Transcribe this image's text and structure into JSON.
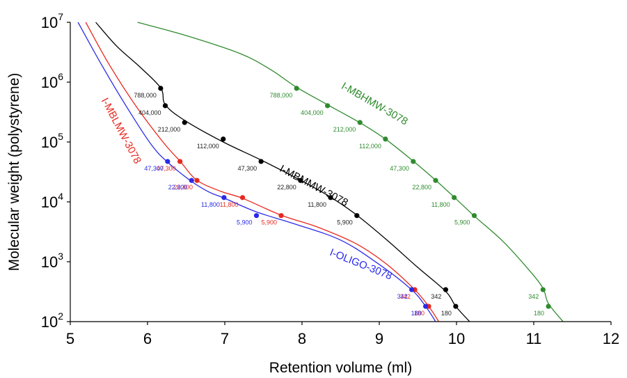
{
  "chart_data": {
    "type": "scatter",
    "xlabel": "Retention volume (ml)",
    "ylabel": "Molecular weight (polystyrene)",
    "xlim": [
      5,
      12
    ],
    "ylim": [
      100,
      10000000
    ],
    "y_scale": "log",
    "grid": false,
    "x_ticks": [
      "5",
      "6",
      "7",
      "8",
      "9",
      "10",
      "11",
      "12"
    ],
    "y_ticks": [
      {
        "value": 100,
        "base": "10",
        "exp": "2"
      },
      {
        "value": 1000,
        "base": "10",
        "exp": "3"
      },
      {
        "value": 10000,
        "base": "10",
        "exp": "4"
      },
      {
        "value": 100000,
        "base": "10",
        "exp": "5"
      },
      {
        "value": 1000000,
        "base": "10",
        "exp": "6"
      },
      {
        "value": 10000000,
        "base": "10",
        "exp": "7"
      }
    ],
    "series": [
      {
        "name": "I-MBHMW-3078",
        "color": "#2e8b2e",
        "label_pos": {
          "x": 8.5,
          "y": 800000,
          "angle": 30
        },
        "points": [
          {
            "x": 7.93,
            "y": 788000,
            "label": "788,000"
          },
          {
            "x": 8.33,
            "y": 404000,
            "label": "404,000"
          },
          {
            "x": 8.75,
            "y": 212000,
            "label": "212,000"
          },
          {
            "x": 9.08,
            "y": 112000,
            "label": "112,000"
          },
          {
            "x": 9.44,
            "y": 47300,
            "label": "47,300"
          },
          {
            "x": 9.73,
            "y": 22800,
            "label": "22,800"
          },
          {
            "x": 9.97,
            "y": 11800,
            "label": "11,800"
          },
          {
            "x": 10.23,
            "y": 5900,
            "label": "5,900"
          },
          {
            "x": 11.12,
            "y": 342,
            "label": "342"
          },
          {
            "x": 11.19,
            "y": 180,
            "label": "180"
          }
        ],
        "curve": [
          [
            5.87,
            10000000
          ],
          [
            6.5,
            6000000
          ],
          [
            7.2,
            3000000
          ],
          [
            7.6,
            1600000
          ],
          [
            7.93,
            820000
          ],
          [
            8.33,
            420000
          ],
          [
            8.75,
            210000
          ],
          [
            9.08,
            112000
          ],
          [
            9.44,
            48000
          ],
          [
            9.73,
            23000
          ],
          [
            9.97,
            12000
          ],
          [
            10.23,
            5800
          ],
          [
            10.6,
            2200
          ],
          [
            10.95,
            700
          ],
          [
            11.12,
            360
          ],
          [
            11.19,
            200
          ],
          [
            11.38,
            100
          ]
        ]
      },
      {
        "name": "I-MBMMW-3078",
        "color": "#000000",
        "label_pos": {
          "x": 7.7,
          "y": 33000,
          "angle": 28
        },
        "points": [
          {
            "x": 6.17,
            "y": 788000,
            "label": "788,000"
          },
          {
            "x": 6.23,
            "y": 404000,
            "label": "404,000"
          },
          {
            "x": 6.48,
            "y": 212000,
            "label": "212,000"
          },
          {
            "x": 6.98,
            "y": 112000,
            "label": "112,000"
          },
          {
            "x": 7.47,
            "y": 47300,
            "label": "47,300"
          },
          {
            "x": 7.98,
            "y": 22800,
            "label": "22,800"
          },
          {
            "x": 8.37,
            "y": 11800,
            "label": "11,800"
          },
          {
            "x": 8.71,
            "y": 5900,
            "label": "5,900"
          },
          {
            "x": 9.86,
            "y": 342,
            "label": "342"
          },
          {
            "x": 9.99,
            "y": 180,
            "label": "180"
          }
        ],
        "curve": [
          [
            5.33,
            10000000
          ],
          [
            5.6,
            4000000
          ],
          [
            5.9,
            1800000
          ],
          [
            6.17,
            800000
          ],
          [
            6.23,
            420000
          ],
          [
            6.48,
            230000
          ],
          [
            6.98,
            100000
          ],
          [
            7.47,
            50000
          ],
          [
            7.98,
            23000
          ],
          [
            8.37,
            12000
          ],
          [
            8.71,
            6000
          ],
          [
            9.1,
            2300
          ],
          [
            9.5,
            800
          ],
          [
            9.86,
            320
          ],
          [
            9.99,
            180
          ],
          [
            10.17,
            100
          ]
        ]
      },
      {
        "name": "I-MBLMW-3078",
        "color": "#e8281e",
        "label_pos": {
          "x": 5.4,
          "y": 500000,
          "angle": 62
        },
        "points": [
          {
            "x": 6.42,
            "y": 47300,
            "label": "47,300"
          },
          {
            "x": 6.64,
            "y": 22800,
            "label": "22,800"
          },
          {
            "x": 7.23,
            "y": 11800,
            "label": "11,800"
          },
          {
            "x": 7.73,
            "y": 5900,
            "label": "5,900"
          },
          {
            "x": 9.46,
            "y": 342,
            "label": "342"
          },
          {
            "x": 9.64,
            "y": 180,
            "label": "180"
          }
        ],
        "curve": [
          [
            5.2,
            10000000
          ],
          [
            5.5,
            2000000
          ],
          [
            5.85,
            400000
          ],
          [
            6.2,
            100000
          ],
          [
            6.42,
            48000
          ],
          [
            6.64,
            23000
          ],
          [
            6.95,
            15000
          ],
          [
            7.23,
            11500
          ],
          [
            7.73,
            6000
          ],
          [
            8.2,
            3800
          ],
          [
            8.7,
            2000
          ],
          [
            9.1,
            900
          ],
          [
            9.46,
            340
          ],
          [
            9.64,
            180
          ],
          [
            9.77,
            100
          ]
        ]
      },
      {
        "name": "I-OLIGO-3078",
        "color": "#2a2ae8",
        "label_pos": {
          "x": 8.35,
          "y": 1300,
          "angle": 22
        },
        "points": [
          {
            "x": 6.26,
            "y": 47300,
            "label": "47,300"
          },
          {
            "x": 6.57,
            "y": 22800,
            "label": "22,800"
          },
          {
            "x": 6.99,
            "y": 11800,
            "label": "11,800"
          },
          {
            "x": 7.41,
            "y": 5900,
            "label": "5,900"
          },
          {
            "x": 9.42,
            "y": 342,
            "label": "342"
          },
          {
            "x": 9.6,
            "y": 180,
            "label": "180"
          }
        ],
        "curve": [
          [
            5.1,
            10000000
          ],
          [
            5.4,
            2000000
          ],
          [
            5.75,
            350000
          ],
          [
            6.05,
            90000
          ],
          [
            6.26,
            46000
          ],
          [
            6.57,
            22000
          ],
          [
            6.8,
            14500
          ],
          [
            6.99,
            11600
          ],
          [
            7.41,
            6800
          ],
          [
            7.9,
            4300
          ],
          [
            8.5,
            2300
          ],
          [
            9.0,
            900
          ],
          [
            9.42,
            340
          ],
          [
            9.6,
            180
          ],
          [
            9.73,
            100
          ]
        ]
      }
    ]
  }
}
